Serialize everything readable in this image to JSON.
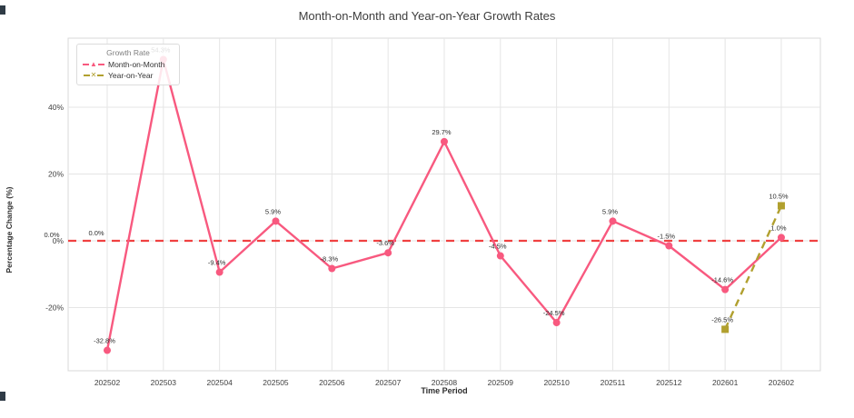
{
  "title": "Month-on-Month and Year-on-Year Growth Rates",
  "legend": {
    "title": "Growth Rate",
    "items": [
      {
        "label": "Month-on-Month",
        "color": "#f8597f",
        "marker": "triangle-up"
      },
      {
        "label": "Year-on-Year",
        "color": "#b1a02f",
        "marker": "x"
      }
    ]
  },
  "axes": {
    "x_label": "Time Period",
    "y_label": "Percentage Change (%)"
  },
  "chart_data": {
    "type": "line",
    "title": "Month-on-Month and Year-on-Year Growth Rates",
    "xlabel": "Time Period",
    "ylabel": "Percentage Change (%)",
    "grid": true,
    "legend_position": "top-left",
    "categories": [
      "202502",
      "202503",
      "202504",
      "202505",
      "202506",
      "202507",
      "202508",
      "202509",
      "202510",
      "202511",
      "202512",
      "202601",
      "202602"
    ],
    "y_ticks": [
      "-20%",
      "0%",
      "20%",
      "40%"
    ],
    "y_tick_values": [
      -20,
      0,
      20,
      40
    ],
    "ylim": [
      -39,
      61
    ],
    "series": [
      {
        "name": "Month-on-Month",
        "color": "#f8597f",
        "line_style": "solid",
        "marker": "circle",
        "values": [
          -32.8,
          54.3,
          -9.4,
          5.9,
          -8.3,
          -3.6,
          29.7,
          -4.5,
          -24.5,
          5.9,
          -1.5,
          -14.6,
          1.0
        ],
        "labels": [
          "-32.8%",
          "54.3%",
          "-9.4%",
          "5.9%",
          "-8.3%",
          "-3.6%",
          "29.7%",
          "-4.5%",
          "-24.5%",
          "5.9%",
          "-1.5%",
          "-14.6%",
          "1.0%"
        ]
      },
      {
        "name": "Year-on-Year",
        "color": "#b1a02f",
        "line_style": "dashed",
        "marker": "square",
        "values": [
          null,
          null,
          null,
          null,
          null,
          null,
          null,
          null,
          null,
          null,
          null,
          -26.5,
          10.5
        ],
        "labels": [
          null,
          null,
          null,
          null,
          null,
          null,
          null,
          null,
          null,
          null,
          null,
          "-26.5%",
          "10.5%"
        ]
      }
    ],
    "zero_line": {
      "value": 0,
      "color": "#f04141",
      "style": "dashed"
    },
    "annotations": [
      {
        "text": "0.0%",
        "position": "outside-left-of-axis"
      },
      {
        "text": "0.0%",
        "position": "above-zero-line-at-first-category"
      }
    ]
  }
}
